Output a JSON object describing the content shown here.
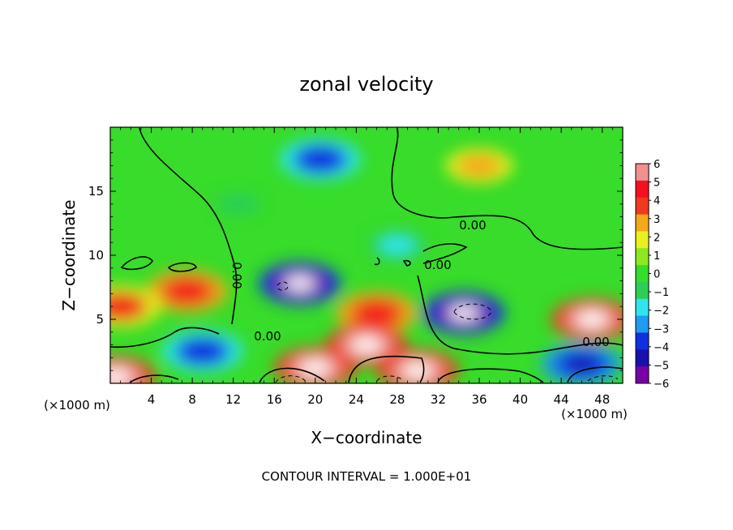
{
  "chart_data": {
    "type": "heatmap",
    "title": "zonal velocity",
    "xlabel": "X−coordinate",
    "ylabel": "Z−coordinate",
    "x_unit_label": "(×1000 m)",
    "x_unit_label_right": "(×1000 m)",
    "footer": "CONTOUR INTERVAL = 1.000E+01",
    "xlim": [
      0,
      50
    ],
    "ylim": [
      0,
      20
    ],
    "x_ticks": [
      "4",
      "8",
      "12",
      "16",
      "20",
      "24",
      "28",
      "32",
      "36",
      "40",
      "44",
      "48"
    ],
    "x_tick_values": [
      4,
      8,
      12,
      16,
      20,
      24,
      28,
      32,
      36,
      40,
      44,
      48
    ],
    "y_ticks": [
      "5",
      "10",
      "15"
    ],
    "y_tick_values": [
      5,
      10,
      15
    ],
    "colorbar": {
      "labels": [
        "6",
        "5",
        "4",
        "3",
        "2",
        "1",
        "0",
        "−1",
        "−2",
        "−3",
        "−4",
        "−5",
        "−6"
      ],
      "range": [
        -6,
        6
      ],
      "colors": [
        "#7a00a8",
        "#1a10b0",
        "#1030e0",
        "#1f9bf0",
        "#2ee5ee",
        "#2ccf55",
        "#35de2a",
        "#8de820",
        "#e8f020",
        "#f4a81a",
        "#f03a20",
        "#f41020",
        "#f09090"
      ]
    },
    "contour_labels": [
      "0.00",
      "0.00",
      "0.00",
      "0.00",
      "0.00"
    ],
    "contour_level": 0.0,
    "features": [
      {
        "x": 20.5,
        "z": 17.5,
        "value": -4.5
      },
      {
        "x": 36.0,
        "z": 17.0,
        "value": 3.2
      },
      {
        "x": 18.5,
        "z": 7.8,
        "value": -8
      },
      {
        "x": 34.5,
        "z": 5.5,
        "value": -8
      },
      {
        "x": 7.5,
        "z": 7.2,
        "value": 4.8
      },
      {
        "x": 1.0,
        "z": 6.0,
        "value": 4.5
      },
      {
        "x": 26.0,
        "z": 5.5,
        "value": 5.0
      },
      {
        "x": 47.0,
        "z": 5.0,
        "value": 8
      },
      {
        "x": 25.0,
        "z": 3.0,
        "value": 8
      },
      {
        "x": 30.0,
        "z": 1.0,
        "value": 8
      },
      {
        "x": 20.0,
        "z": 1.2,
        "value": 8
      },
      {
        "x": 9.0,
        "z": 2.5,
        "value": -4.5
      },
      {
        "x": 46.0,
        "z": 1.5,
        "value": -5
      },
      {
        "x": 0.5,
        "z": 0.5,
        "value": 7
      },
      {
        "x": 12.5,
        "z": 14.0,
        "value": -1.5
      },
      {
        "x": 28.0,
        "z": 10.8,
        "value": -2.5
      }
    ]
  }
}
